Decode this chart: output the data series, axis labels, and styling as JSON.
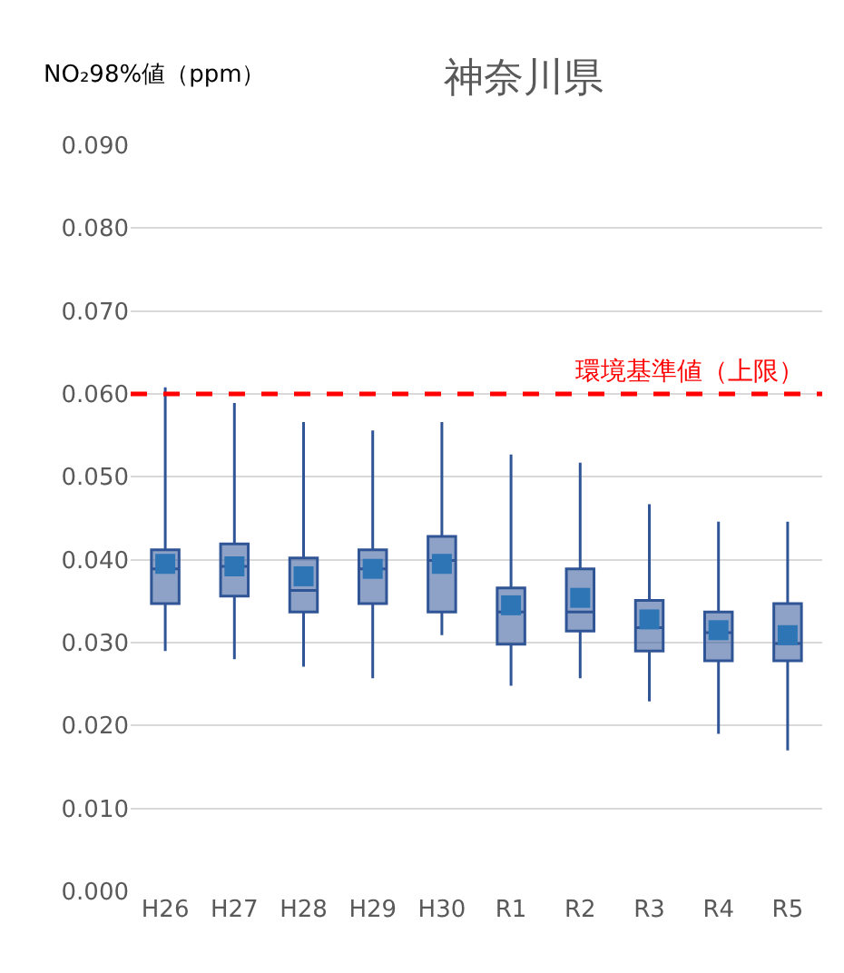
{
  "chart_data": {
    "type": "box",
    "title": "神奈川県",
    "ylabel": "NO₂98%値（ppm）",
    "categories": [
      "H26",
      "H27",
      "H28",
      "H29",
      "H30",
      "R1",
      "R2",
      "R3",
      "R4",
      "R5"
    ],
    "series": [
      {
        "color": "#2f5597",
        "boxes": [
          {
            "low": 0.029,
            "q1": 0.0347,
            "median": 0.0389,
            "q3": 0.0412,
            "high": 0.0608,
            "mean": 0.0395
          },
          {
            "low": 0.028,
            "q1": 0.0356,
            "median": 0.0392,
            "q3": 0.0419,
            "high": 0.0589,
            "mean": 0.0392
          },
          {
            "low": 0.0271,
            "q1": 0.0337,
            "median": 0.0363,
            "q3": 0.0402,
            "high": 0.0566,
            "mean": 0.038
          },
          {
            "low": 0.0257,
            "q1": 0.0347,
            "median": 0.0389,
            "q3": 0.0412,
            "high": 0.0556,
            "mean": 0.0389
          },
          {
            "low": 0.0309,
            "q1": 0.0337,
            "median": 0.0399,
            "q3": 0.0428,
            "high": 0.0566,
            "mean": 0.0395
          },
          {
            "low": 0.0248,
            "q1": 0.0298,
            "median": 0.0337,
            "q3": 0.0366,
            "high": 0.0527,
            "mean": 0.0345
          },
          {
            "low": 0.0257,
            "q1": 0.0314,
            "median": 0.0337,
            "q3": 0.0389,
            "high": 0.0517,
            "mean": 0.0354
          },
          {
            "low": 0.0229,
            "q1": 0.029,
            "median": 0.0318,
            "q3": 0.0351,
            "high": 0.0467,
            "mean": 0.0328
          },
          {
            "low": 0.019,
            "q1": 0.0278,
            "median": 0.0312,
            "q3": 0.0337,
            "high": 0.0446,
            "mean": 0.0315
          },
          {
            "low": 0.017,
            "q1": 0.0278,
            "median": 0.0299,
            "q3": 0.0347,
            "high": 0.0446,
            "mean": 0.0309
          }
        ]
      }
    ],
    "ylim": [
      0,
      0.09
    ],
    "yticks": [
      {
        "value": 0,
        "label": "0.000"
      },
      {
        "value": 0.01,
        "label": "0.010"
      },
      {
        "value": 0.02,
        "label": "0.020"
      },
      {
        "value": 0.03,
        "label": "0.030"
      },
      {
        "value": 0.04,
        "label": "0.040"
      },
      {
        "value": 0.05,
        "label": "0.050"
      },
      {
        "value": 0.06,
        "label": "0.060"
      },
      {
        "value": 0.07,
        "label": "0.070"
      },
      {
        "value": 0.08,
        "label": "0.080"
      },
      {
        "value": 0.09,
        "label": "0.090"
      }
    ],
    "ref_lines": [
      {
        "axis": "y",
        "value": 0.06,
        "label": "環境基準値（上限）",
        "color": "#ff0000",
        "line_style": "dashed"
      }
    ],
    "grid": "y",
    "marker": "square"
  }
}
